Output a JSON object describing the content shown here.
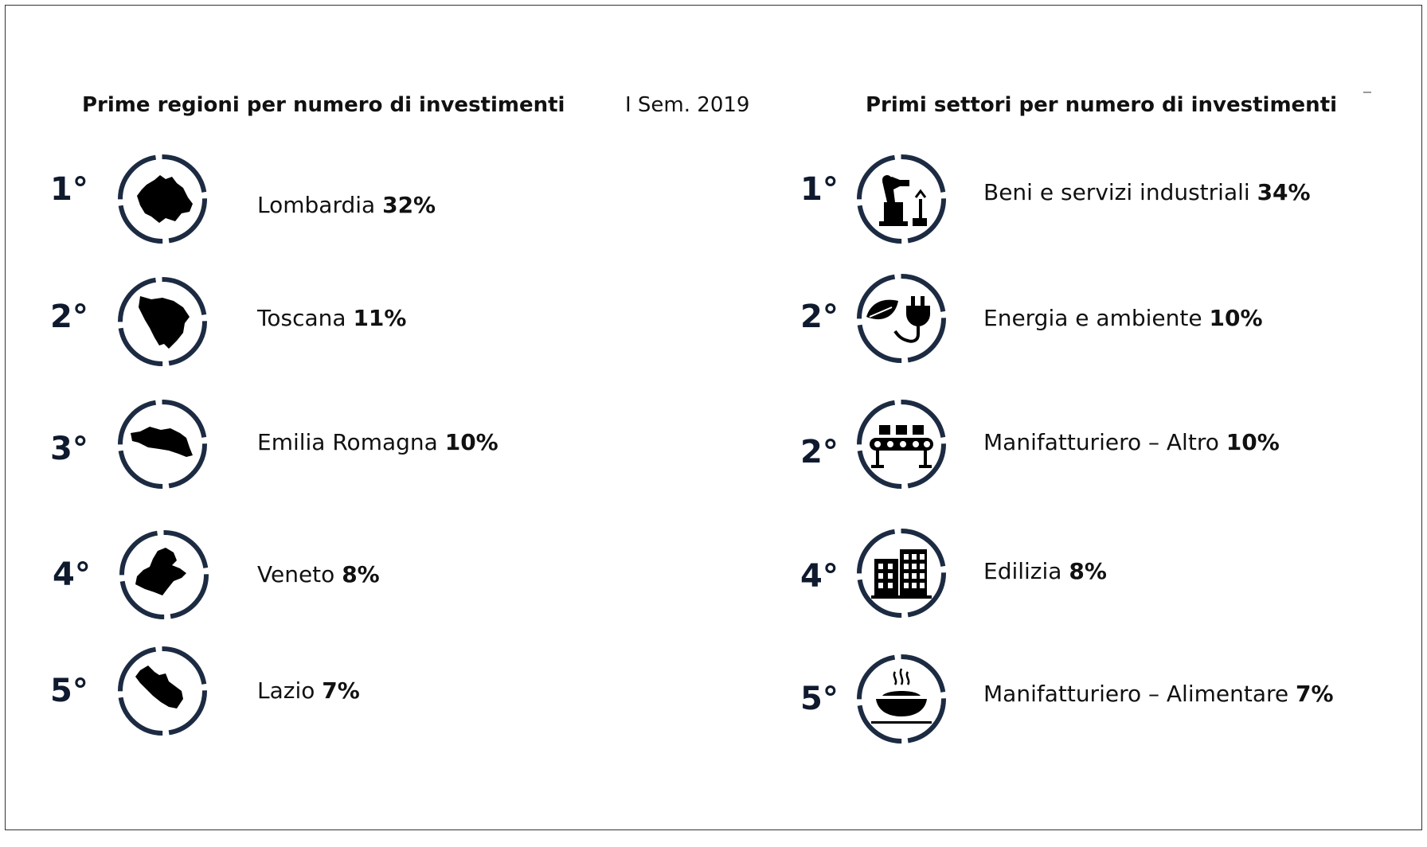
{
  "header": {
    "left_title": "Prime regioni per numero di investimenti",
    "period": "I Sem. 2019",
    "right_title": "Primi settori per numero di investimenti"
  },
  "regions": [
    {
      "rank": "1°",
      "name": "Lombardia",
      "share": "32%",
      "icon": "lombardia-map-icon"
    },
    {
      "rank": "2°",
      "name": "Toscana",
      "share": "11%",
      "icon": "toscana-map-icon"
    },
    {
      "rank": "3°",
      "name": "Emilia Romagna",
      "share": "10%",
      "icon": "emilia-romagna-map-icon"
    },
    {
      "rank": "4°",
      "name": "Veneto",
      "share": "8%",
      "icon": "veneto-map-icon"
    },
    {
      "rank": "5°",
      "name": "Lazio",
      "share": "7%",
      "icon": "lazio-map-icon"
    }
  ],
  "sectors": [
    {
      "rank": "1°",
      "name": "Beni e servizi industriali",
      "share": "34%",
      "icon": "industrial-robot-icon"
    },
    {
      "rank": "2°",
      "name": "Energia e ambiente",
      "share": "10%",
      "icon": "leaf-plug-icon"
    },
    {
      "rank": "2°",
      "name": "Manifatturiero – Altro",
      "share": "10%",
      "icon": "conveyor-belt-icon"
    },
    {
      "rank": "4°",
      "name": "Edilizia",
      "share": "8%",
      "icon": "buildings-icon"
    },
    {
      "rank": "5°",
      "name": "Manifatturiero – Alimentare",
      "share": "7%",
      "icon": "food-bowl-icon"
    }
  ],
  "colors": {
    "ring": "#1c2b42",
    "text": "#111111"
  }
}
